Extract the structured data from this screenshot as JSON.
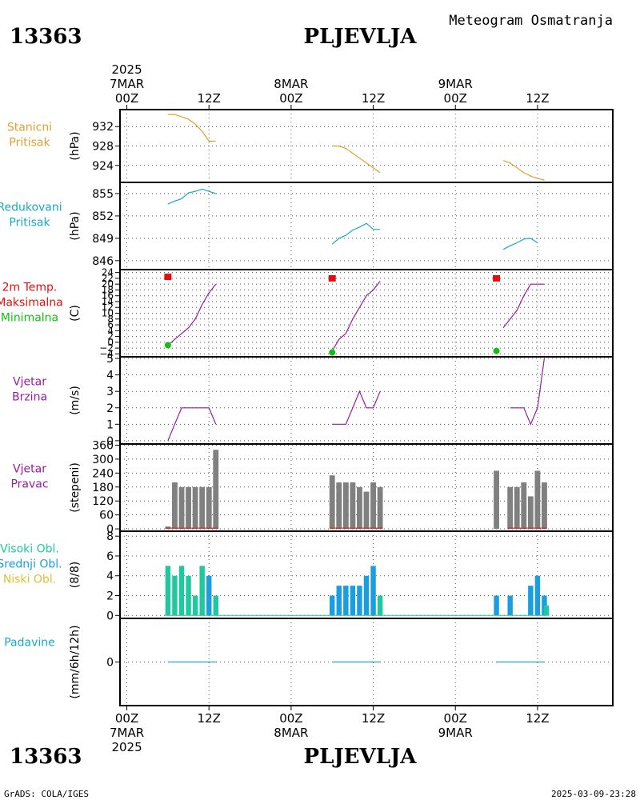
{
  "header": {
    "station_id": "13363",
    "station_name": "PLJEVLJA",
    "chart_type": "Meteogram Osmatranja"
  },
  "time_axis": {
    "year": "2025",
    "top_labels": [
      {
        "h": 0,
        "l1": "2025",
        "l2": "7MAR",
        "l3": "00Z"
      },
      {
        "h": 12,
        "l1": "",
        "l2": "",
        "l3": "12Z"
      },
      {
        "h": 24,
        "l1": "",
        "l2": "8MAR",
        "l3": "00Z"
      },
      {
        "h": 36,
        "l1": "",
        "l2": "",
        "l3": "12Z"
      },
      {
        "h": 48,
        "l1": "",
        "l2": "9MAR",
        "l3": "00Z"
      },
      {
        "h": 60,
        "l1": "",
        "l2": "",
        "l3": "12Z"
      }
    ],
    "bottom_labels": [
      {
        "h": 0,
        "l1": "00Z",
        "l2": "7MAR",
        "l3": "2025"
      },
      {
        "h": 12,
        "l1": "12Z",
        "l2": "",
        "l3": ""
      },
      {
        "h": 24,
        "l1": "00Z",
        "l2": "8MAR",
        "l3": ""
      },
      {
        "h": 36,
        "l1": "12Z",
        "l2": "",
        "l3": ""
      },
      {
        "h": 48,
        "l1": "00Z",
        "l2": "9MAR",
        "l3": ""
      },
      {
        "h": 60,
        "l1": "12Z",
        "l2": "",
        "l3": ""
      }
    ]
  },
  "footer": {
    "credit": "GrADS: COLA/IGES",
    "timestamp": "2025-03-09-23:28"
  },
  "colors": {
    "pressure": "#e0a030",
    "reduced": "#1aa7c8",
    "tmax": "#e01010",
    "tmin": "#10c010",
    "wind": "#9a1aa0",
    "dir_bar": "#808080",
    "cloud_high": "#20c8a0",
    "cloud_mid": "#1a9ee0",
    "cloud_low": "#e0c030",
    "precip": "#1aa7c8"
  },
  "chart_data": [
    {
      "type": "line",
      "id": "stanicni",
      "labels": [
        {
          "text": "Stanicni",
          "color": "#e0a030"
        },
        {
          "text": "Pritisak",
          "color": "#e0a030"
        }
      ],
      "ylabel": "(hPa)",
      "ylim": [
        920.5,
        935.5
      ],
      "yticks": [
        924,
        928,
        932
      ],
      "series": [
        {
          "color": "#e0a030",
          "segments": [
            [
              [
                6,
                934.5
              ],
              [
                7,
                934.5
              ],
              [
                8,
                934
              ],
              [
                9,
                933.5
              ],
              [
                10,
                932.5
              ],
              [
                11,
                931
              ],
              [
                12,
                929
              ],
              [
                13,
                929
              ]
            ],
            [
              [
                30,
                928
              ],
              [
                31,
                928
              ],
              [
                32,
                927.5
              ],
              [
                33,
                926.5
              ],
              [
                34,
                925.5
              ],
              [
                35,
                924.5
              ],
              [
                36,
                923.5
              ],
              [
                37,
                922.5
              ]
            ],
            [
              [
                55,
                925
              ],
              [
                56,
                924.5
              ],
              [
                57,
                923.5
              ],
              [
                58,
                922.5
              ],
              [
                59,
                921.8
              ],
              [
                60,
                921.3
              ],
              [
                61,
                921
              ]
            ]
          ]
        }
      ]
    },
    {
      "type": "line",
      "id": "redukovani",
      "labels": [
        {
          "text": "Redukovani",
          "color": "#1aa7c8"
        },
        {
          "text": "Pritisak",
          "color": "#1aa7c8"
        }
      ],
      "ylabel": "(hPa)",
      "ylim": [
        844.8,
        856.5
      ],
      "yticks": [
        846,
        849,
        852,
        855
      ],
      "series": [
        {
          "color": "#1aa7c8",
          "segments": [
            [
              [
                6,
                853.6
              ],
              [
                7,
                854
              ],
              [
                8,
                854.3
              ],
              [
                9,
                855.1
              ],
              [
                10,
                855.3
              ],
              [
                11,
                855.6
              ],
              [
                12,
                855.3
              ],
              [
                13,
                855
              ]
            ],
            [
              [
                30,
                848.2
              ],
              [
                31,
                849
              ],
              [
                32,
                849.4
              ],
              [
                33,
                850.1
              ],
              [
                34,
                850.5
              ],
              [
                35,
                851
              ],
              [
                36,
                850.2
              ],
              [
                37,
                850.2
              ]
            ],
            [
              [
                55,
                847.5
              ],
              [
                56,
                848
              ],
              [
                57,
                848.4
              ],
              [
                58,
                848.9
              ],
              [
                59,
                849
              ],
              [
                60,
                848.4
              ]
            ]
          ]
        }
      ]
    },
    {
      "type": "line",
      "id": "temperatura",
      "labels": [
        {
          "text": "2m Temp.",
          "color": "#e01010"
        },
        {
          "text": "Maksimalna",
          "color": "#e01010"
        },
        {
          "text": "Minimalna",
          "color": "#10c010"
        }
      ],
      "ylabel": "(C)",
      "ylim": [
        -5,
        25
      ],
      "yticks": [
        -4,
        -2,
        0,
        2,
        4,
        6,
        8,
        10,
        12,
        14,
        16,
        18,
        20,
        22,
        24
      ],
      "ytick_labels": [
        "−4",
        "−2",
        "0",
        "2",
        "4",
        "6",
        "8",
        "10",
        "12",
        "14",
        "16",
        "18",
        "20",
        "22",
        "24"
      ],
      "series": [
        {
          "color": "#9a1aa0",
          "segments": [
            [
              [
                6,
                -1
              ],
              [
                7,
                1
              ],
              [
                8,
                3
              ],
              [
                9,
                5
              ],
              [
                10,
                8
              ],
              [
                11,
                13
              ],
              [
                12,
                17
              ],
              [
                13,
                20
              ]
            ],
            [
              [
                30,
                -3
              ],
              [
                31,
                1
              ],
              [
                32,
                3
              ],
              [
                33,
                8
              ],
              [
                34,
                12
              ],
              [
                35,
                16
              ],
              [
                36,
                18
              ],
              [
                37,
                21
              ]
            ],
            [
              [
                55,
                5
              ],
              [
                56,
                8
              ],
              [
                57,
                11
              ],
              [
                58,
                16
              ],
              [
                59,
                20
              ],
              [
                60,
                20
              ],
              [
                61,
                20
              ]
            ]
          ]
        }
      ],
      "tmax_markers": [
        [
          6,
          22.5
        ],
        [
          30,
          22
        ],
        [
          54,
          22
        ]
      ],
      "tmin_markers": [
        [
          6,
          -1
        ],
        [
          30,
          -3.5
        ],
        [
          54,
          -3
        ]
      ]
    },
    {
      "type": "line",
      "id": "vjetar_brzina",
      "labels": [
        {
          "text": "Vjetar",
          "color": "#9a1aa0"
        },
        {
          "text": "Brzina",
          "color": "#9a1aa0"
        }
      ],
      "ylabel": "(m/s)",
      "ylim": [
        -0.2,
        5.1
      ],
      "yticks": [
        0,
        1,
        2,
        3,
        4,
        5
      ],
      "series": [
        {
          "color": "#9a1aa0",
          "segments": [
            [
              [
                6,
                0
              ],
              [
                7,
                1
              ],
              [
                8,
                2
              ],
              [
                9,
                2
              ],
              [
                10,
                2
              ],
              [
                11,
                2
              ],
              [
                12,
                2
              ],
              [
                13,
                1
              ]
            ],
            [
              [
                30,
                1
              ],
              [
                31,
                1
              ],
              [
                32,
                1
              ],
              [
                33,
                2
              ],
              [
                34,
                3
              ],
              [
                35,
                2
              ],
              [
                36,
                2
              ],
              [
                37,
                3
              ]
            ],
            [
              [
                56,
                2
              ],
              [
                57,
                2
              ],
              [
                58,
                2
              ],
              [
                59,
                1
              ],
              [
                60,
                2
              ],
              [
                61,
                5
              ]
            ]
          ]
        }
      ]
    },
    {
      "type": "bar",
      "id": "vjetar_pravac",
      "labels": [
        {
          "text": "Vjetar",
          "color": "#9a1aa0"
        },
        {
          "text": "Pravac",
          "color": "#9a1aa0"
        }
      ],
      "ylabel": "(stepeni)",
      "ylim": [
        -10,
        365
      ],
      "yticks": [
        0,
        60,
        120,
        180,
        240,
        300,
        360
      ],
      "bar_width_hours": 0.8,
      "series": [
        {
          "color": "#808080",
          "points": [
            [
              6,
              10
            ],
            [
              7,
              200
            ],
            [
              8,
              180
            ],
            [
              9,
              180
            ],
            [
              10,
              180
            ],
            [
              11,
              180
            ],
            [
              12,
              180
            ],
            [
              13,
              340
            ],
            [
              30,
              230
            ],
            [
              31,
              200
            ],
            [
              32,
              200
            ],
            [
              33,
              200
            ],
            [
              34,
              180
            ],
            [
              35,
              160
            ],
            [
              36,
              200
            ],
            [
              37,
              180
            ],
            [
              54,
              250
            ],
            [
              56,
              180
            ],
            [
              57,
              180
            ],
            [
              58,
              200
            ],
            [
              59,
              140
            ],
            [
              60,
              250
            ],
            [
              61,
              200
            ]
          ]
        }
      ],
      "baseline": [
        [
          6,
          13
        ],
        [
          30,
          37
        ],
        [
          56,
          61
        ]
      ]
    },
    {
      "type": "bar",
      "id": "oblacnost",
      "labels": [
        {
          "text": "Visoki Obl.",
          "color": "#20c8a0"
        },
        {
          "text": "Srednji Obl.",
          "color": "#1a9ee0"
        },
        {
          "text": "Niski Obl.",
          "color": "#e0c030"
        }
      ],
      "ylabel": "(8/8)",
      "ylim": [
        -0.3,
        8.5
      ],
      "yticks": [
        0,
        2,
        4,
        6,
        8
      ],
      "bar_width_hours": 0.75,
      "bars": [
        {
          "x": 6,
          "v": 5,
          "color": "#20c8a0"
        },
        {
          "x": 7,
          "v": 4,
          "color": "#20c8a0"
        },
        {
          "x": 8,
          "v": 5,
          "color": "#20c8a0"
        },
        {
          "x": 9,
          "v": 4,
          "color": "#20c8a0"
        },
        {
          "x": 10,
          "v": 2,
          "color": "#20c8a0"
        },
        {
          "x": 11,
          "v": 5,
          "color": "#20c8a0"
        },
        {
          "x": 12,
          "v": 4,
          "color": "#1a9ee0"
        },
        {
          "x": 13,
          "v": 2,
          "color": "#20c8a0"
        },
        {
          "x": 30,
          "v": 2,
          "color": "#1a9ee0"
        },
        {
          "x": 31,
          "v": 3,
          "color": "#1a9ee0"
        },
        {
          "x": 32,
          "v": 3,
          "color": "#1a9ee0"
        },
        {
          "x": 33,
          "v": 3,
          "color": "#1a9ee0"
        },
        {
          "x": 34,
          "v": 3,
          "color": "#1a9ee0"
        },
        {
          "x": 35,
          "v": 4,
          "color": "#1a9ee0"
        },
        {
          "x": 36,
          "v": 5,
          "color": "#1a9ee0"
        },
        {
          "x": 37,
          "v": 2,
          "color": "#20c8a0"
        },
        {
          "x": 54,
          "v": 2,
          "color": "#1a9ee0"
        },
        {
          "x": 56,
          "v": 2,
          "color": "#1a9ee0"
        },
        {
          "x": 59,
          "v": 3,
          "color": "#1a9ee0"
        },
        {
          "x": 60,
          "v": 4,
          "color": "#1a9ee0"
        },
        {
          "x": 61,
          "v": 2,
          "color": "#1a9ee0"
        },
        {
          "x": 61.3,
          "v": 1,
          "color": "#20c8a0"
        }
      ]
    },
    {
      "type": "bar",
      "id": "padavine",
      "labels": [
        {
          "text": "Padavine",
          "color": "#1aa7c8"
        }
      ],
      "ylabel": "(mm/6h/12h)",
      "ylim": [
        -1,
        1
      ],
      "yticks": [
        0
      ],
      "series": [
        {
          "color": "#1aa7c8",
          "segments": [
            [
              [
                6,
                0
              ],
              [
                13,
                0
              ]
            ],
            [
              [
                30,
                0
              ],
              [
                37,
                0
              ]
            ],
            [
              [
                54,
                0
              ],
              [
                61,
                0
              ]
            ]
          ]
        }
      ]
    }
  ]
}
